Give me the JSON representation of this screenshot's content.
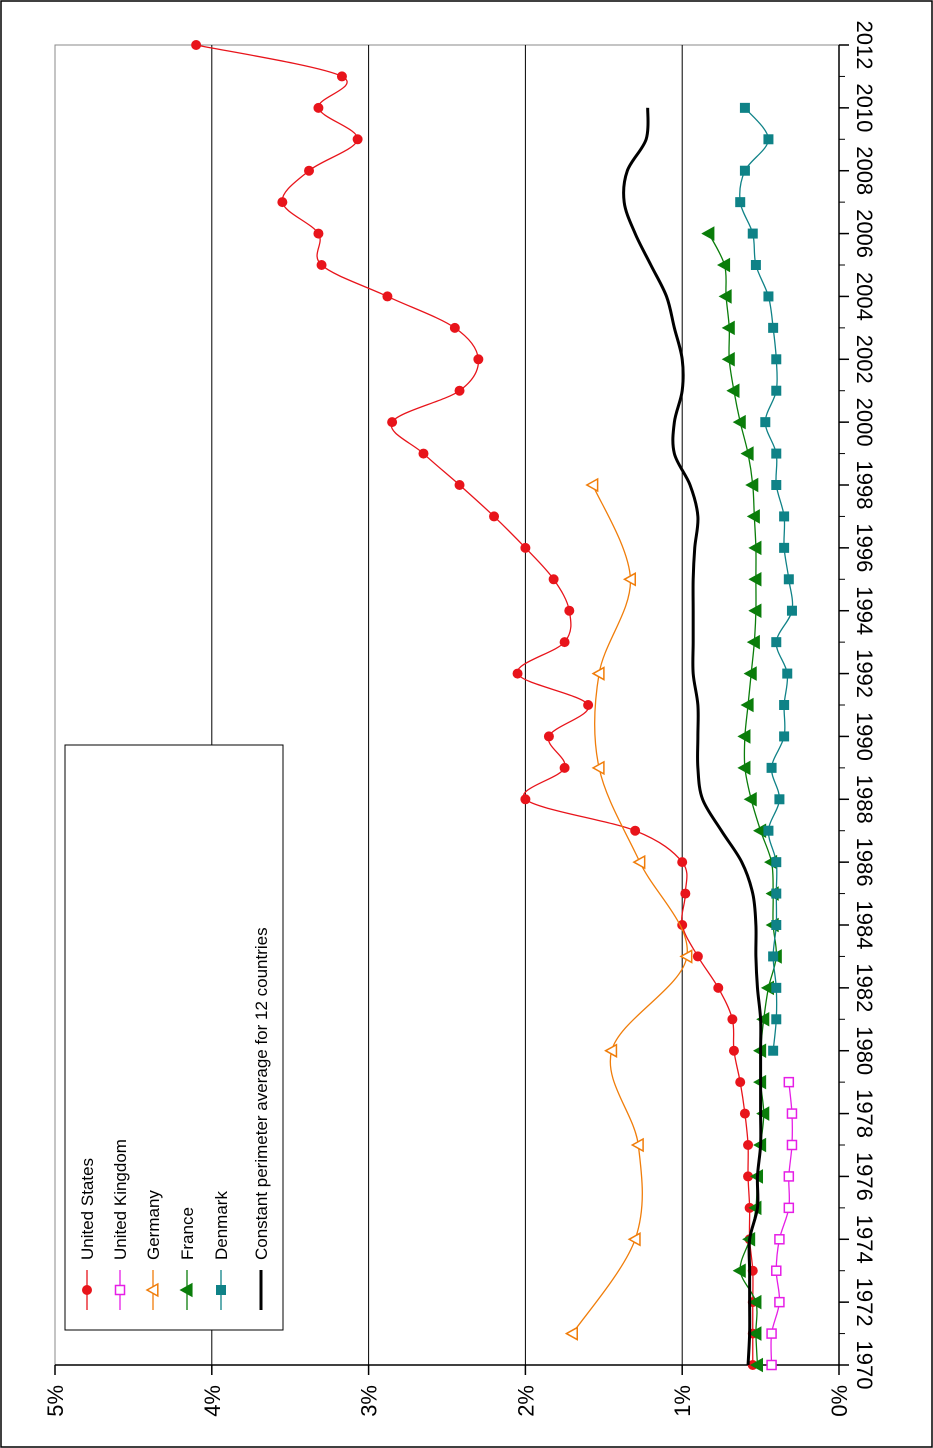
{
  "chart_data": {
    "type": "line",
    "title": "",
    "xlabel": "",
    "ylabel": "",
    "xlim": [
      1970,
      2012
    ],
    "ylim": [
      0,
      5
    ],
    "x_ticks": [
      1970,
      1972,
      1974,
      1976,
      1978,
      1980,
      1982,
      1984,
      1986,
      1988,
      1990,
      1992,
      1994,
      1996,
      1998,
      2000,
      2002,
      2004,
      2006,
      2008,
      2010,
      2012
    ],
    "x_tick_labels": [
      "1970",
      "1972",
      "1974",
      "1976",
      "1978",
      "1980",
      "1982",
      "1984",
      "1986",
      "1988",
      "1990",
      "1992",
      "1994",
      "1996",
      "1998",
      "2000",
      "2002",
      "2004",
      "2006",
      "2008",
      "2010",
      "2012"
    ],
    "y_ticks": [
      0,
      1,
      2,
      3,
      4,
      5
    ],
    "y_tick_labels": [
      "0%",
      "1%",
      "2%",
      "3%",
      "4%",
      "5%"
    ],
    "grid": "horizontal major lines at 1%, 2%, 3%, 4%",
    "legend_position": "top-left",
    "orientation": "rotated 90 degrees clockwise",
    "series": [
      {
        "name": "United States",
        "color": "#e8141b",
        "marker": "circle-filled",
        "x": [
          1970,
          1971,
          1972,
          1973,
          1974,
          1975,
          1976,
          1977,
          1978,
          1979,
          1980,
          1981,
          1982,
          1983,
          1984,
          1985,
          1986,
          1987,
          1988,
          1989,
          1990,
          1991,
          1992,
          1993,
          1994,
          1995,
          1996,
          1997,
          1998,
          1999,
          2000,
          2001,
          2002,
          2003,
          2004,
          2005,
          2006,
          2007,
          2008,
          2009,
          2010,
          2011,
          2012
        ],
        "values": [
          0.55,
          0.55,
          0.55,
          0.55,
          0.57,
          0.57,
          0.58,
          0.58,
          0.6,
          0.63,
          0.67,
          0.68,
          0.77,
          0.9,
          1.0,
          0.98,
          1.0,
          1.3,
          2.0,
          1.75,
          1.85,
          1.6,
          2.05,
          1.75,
          1.72,
          1.82,
          2.0,
          2.2,
          2.42,
          2.65,
          2.85,
          2.42,
          2.3,
          2.45,
          2.88,
          3.3,
          3.32,
          3.55,
          3.38,
          3.07,
          3.32,
          3.17,
          4.1
        ]
      },
      {
        "name": "United Kingdom",
        "color": "#e61ee6",
        "marker": "square-open",
        "x": [
          1970,
          1971,
          1972,
          1973,
          1974,
          1975,
          1976,
          1977,
          1978,
          1979
        ],
        "values": [
          0.43,
          0.43,
          0.38,
          0.4,
          0.38,
          0.32,
          0.32,
          0.3,
          0.3,
          0.32
        ]
      },
      {
        "name": "Germany",
        "color": "#f07d0a",
        "marker": "triangle-open",
        "x": [
          1971,
          1974,
          1977,
          1980,
          1983,
          1986,
          1989,
          1992,
          1995,
          1998
        ],
        "values": [
          1.7,
          1.3,
          1.28,
          1.45,
          0.97,
          1.27,
          1.53,
          1.53,
          1.33,
          1.57
        ]
      },
      {
        "name": "France",
        "color": "#0a7d0a",
        "marker": "triangle-filled",
        "x": [
          1970,
          1971,
          1972,
          1973,
          1974,
          1975,
          1976,
          1977,
          1978,
          1979,
          1980,
          1981,
          1982,
          1983,
          1984,
          1985,
          1986,
          1987,
          1988,
          1989,
          1990,
          1991,
          1992,
          1993,
          1994,
          1995,
          1996,
          1997,
          1998,
          1999,
          2000,
          2001,
          2002,
          2003,
          2004,
          2005,
          2006
        ],
        "values": [
          0.52,
          0.53,
          0.53,
          0.63,
          0.57,
          0.53,
          0.52,
          0.5,
          0.48,
          0.5,
          0.5,
          0.48,
          0.45,
          0.4,
          0.42,
          0.42,
          0.43,
          0.5,
          0.56,
          0.6,
          0.6,
          0.58,
          0.56,
          0.54,
          0.53,
          0.53,
          0.53,
          0.54,
          0.55,
          0.58,
          0.63,
          0.67,
          0.7,
          0.7,
          0.72,
          0.73,
          0.83
        ]
      },
      {
        "name": "Denmark",
        "color": "#0f8287",
        "marker": "square-filled",
        "x": [
          1980,
          1981,
          1982,
          1983,
          1984,
          1985,
          1986,
          1987,
          1988,
          1989,
          1990,
          1991,
          1992,
          1993,
          1994,
          1995,
          1996,
          1997,
          1998,
          1999,
          2000,
          2001,
          2002,
          2003,
          2004,
          2005,
          2006,
          2007,
          2008,
          2009,
          2010
        ],
        "values": [
          0.42,
          0.4,
          0.4,
          0.42,
          0.4,
          0.4,
          0.4,
          0.45,
          0.38,
          0.43,
          0.35,
          0.35,
          0.33,
          0.4,
          0.3,
          0.32,
          0.35,
          0.35,
          0.4,
          0.4,
          0.47,
          0.4,
          0.4,
          0.42,
          0.45,
          0.53,
          0.55,
          0.63,
          0.6,
          0.45,
          0.6
        ]
      },
      {
        "name": "Constant perimeter average for 12 countries",
        "color": "#000000",
        "marker": "none",
        "x": [
          1970,
          1971,
          1972,
          1973,
          1974,
          1975,
          1976,
          1977,
          1978,
          1979,
          1980,
          1981,
          1982,
          1983,
          1984,
          1985,
          1986,
          1987,
          1988,
          1989,
          1990,
          1991,
          1992,
          1993,
          1994,
          1995,
          1996,
          1997,
          1998,
          1999,
          2000,
          2001,
          2002,
          2003,
          2004,
          2005,
          2006,
          2007,
          2008,
          2009,
          2010
        ],
        "values": [
          0.58,
          0.57,
          0.57,
          0.57,
          0.57,
          0.52,
          0.52,
          0.5,
          0.5,
          0.5,
          0.5,
          0.5,
          0.52,
          0.53,
          0.53,
          0.55,
          0.62,
          0.75,
          0.87,
          0.9,
          0.9,
          0.9,
          0.93,
          0.93,
          0.93,
          0.93,
          0.92,
          0.9,
          0.95,
          1.05,
          1.05,
          1.0,
          1.0,
          1.05,
          1.1,
          1.2,
          1.3,
          1.37,
          1.35,
          1.23,
          1.22
        ]
      }
    ]
  }
}
